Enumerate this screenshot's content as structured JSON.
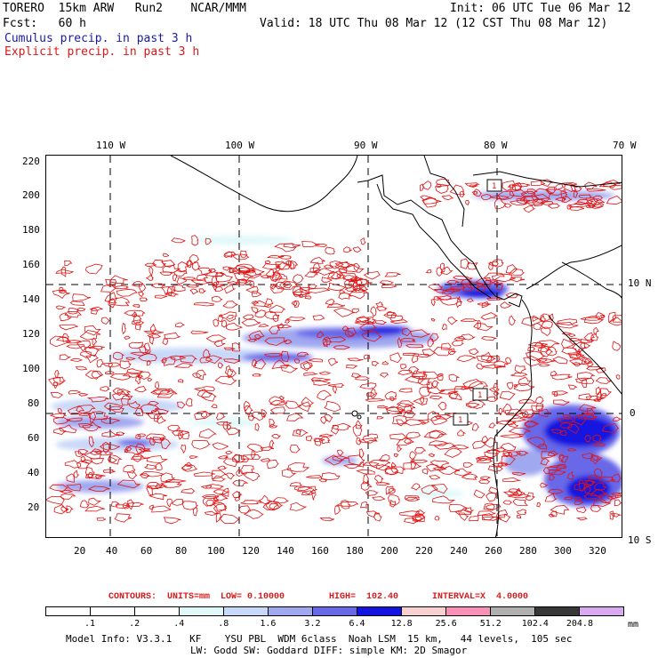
{
  "header": {
    "title_left": "TORERO  15km ARW   Run2    NCAR/MMM",
    "init": "Init: 06 UTC Tue 06 Mar 12",
    "fcst": "Fcst:   60 h",
    "valid": "Valid: 18 UTC Thu 08 Mar 12 (12 CST Thu 08 Mar 12)",
    "field_cumulus": "Cumulus precip. in past 3 h",
    "field_explicit": "Explicit precip. in past 3 h"
  },
  "map": {
    "top_lon_labels": [
      "110 W",
      "100 W",
      "90 W",
      "80 W",
      "70 W"
    ],
    "right_lat_labels": [
      "10 N",
      "0",
      "10 S"
    ],
    "left_y_ticks": [
      "220",
      "200",
      "180",
      "160",
      "140",
      "120",
      "100",
      "80",
      "60",
      "40",
      "20"
    ],
    "bottom_x_ticks": [
      "20",
      "40",
      "60",
      "80",
      "100",
      "120",
      "140",
      "160",
      "180",
      "200",
      "220",
      "240",
      "260",
      "280",
      "300",
      "320"
    ],
    "box_labels": [
      "1",
      "1",
      "1"
    ],
    "colors": {
      "cumulus": "#3a3ad8",
      "explicit": "#e01414",
      "coast": "#000000"
    }
  },
  "contour_info": {
    "units": "CONTOURS:  UNITS=mm  LOW= 0.10000",
    "high": "HIGH=  102.40",
    "interval": "INTERVAL=X  4.0000"
  },
  "colorbar": {
    "labels": [
      ".1",
      ".2",
      ".4",
      ".8",
      "1.6",
      "3.2",
      "6.4",
      "12.8",
      "25.6",
      "51.2",
      "102.4",
      "204.8"
    ],
    "unit": "mm",
    "colors": [
      "#ffffff",
      "#ffffff",
      "#ffffff",
      "#e0f8f8",
      "#c8d8f8",
      "#a0a8f0",
      "#6868e8",
      "#1414e0",
      "#f8d0d0",
      "#f890b8",
      "#b0b0b0",
      "#383838",
      "#d8a8f0"
    ]
  },
  "footer": {
    "line1": "Model Info: V3.3.1   KF    YSU PBL  WDM 6class  Noah LSM  15 km,   44 levels,  105 sec",
    "line2": "LW: Godd SW: Goddard DIFF: simple KM: 2D Smagor"
  }
}
